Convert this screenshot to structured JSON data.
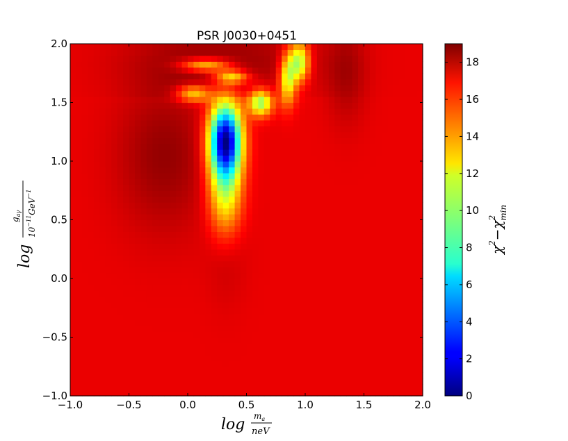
{
  "chart_data": {
    "type": "heatmap",
    "title": "PSR J0030+0451",
    "xlabel": {
      "main": "log",
      "frac_num": "m",
      "frac_num_sub": "a",
      "frac_den": "neV"
    },
    "ylabel": {
      "main": "log",
      "frac_num": "g",
      "frac_num_sub": "aγ",
      "frac_den": "10",
      "frac_den_sup": "−11",
      "frac_den_rest": "GeV",
      "frac_den_rest_sup": "−1"
    },
    "colorbar_label": {
      "chi": "χ",
      "sup1": "2",
      "minus": "−χ",
      "sup2": "2",
      "sub2": "min"
    },
    "xlim": [
      -1.0,
      2.0
    ],
    "ylim": [
      -1.0,
      2.0
    ],
    "x_ticks": [
      "−1.0",
      "−0.5",
      "0.0",
      "0.5",
      "1.0",
      "1.5",
      "2.0"
    ],
    "y_ticks": [
      "−1.0",
      "−0.5",
      "0.0",
      "0.5",
      "1.0",
      "1.5",
      "2.0"
    ],
    "x_tick_values": [
      -1.0,
      -0.5,
      0.0,
      0.5,
      1.0,
      1.5,
      2.0
    ],
    "y_tick_values": [
      -1.0,
      -0.5,
      0.0,
      0.5,
      1.0,
      1.5,
      2.0
    ],
    "colorbar_range": [
      0,
      19
    ],
    "colorbar_ticks": [
      "0",
      "2",
      "4",
      "6",
      "8",
      "10",
      "12",
      "14",
      "16",
      "18"
    ],
    "colorbar_tick_values": [
      0,
      2,
      4,
      6,
      8,
      10,
      12,
      14,
      16,
      18
    ],
    "colormap": "jet",
    "grid": false,
    "background_value": 17.0,
    "features": [
      {
        "kind": "minimum-trough",
        "x": 0.32,
        "y": 1.18,
        "min_value": 0.5
      },
      {
        "kind": "high-region",
        "x": -0.2,
        "y": 1.0,
        "value": 18.5
      },
      {
        "kind": "high-band",
        "x_range": [
          -0.1,
          0.5
        ],
        "y_range": [
          1.6,
          1.95
        ],
        "value": 18.5
      },
      {
        "kind": "low-streak",
        "x": 0.6,
        "y": 1.5,
        "value": 12
      },
      {
        "kind": "low-streak",
        "x": 0.95,
        "y": 1.85,
        "value": 11
      }
    ]
  }
}
